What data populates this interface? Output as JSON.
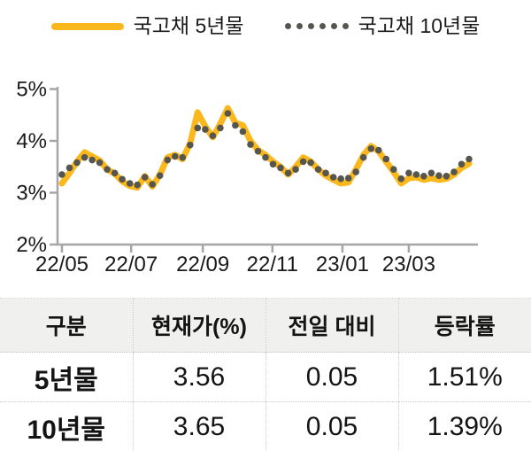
{
  "colors": {
    "line_5y": "#FBB81D",
    "dots_10y": "#57564E",
    "axis": "#a6a6a6",
    "tick_text": "#1a1a1a",
    "table_header_bg": "#f0f0ee"
  },
  "legend": {
    "items": [
      {
        "label": "국고채 5년물",
        "marker": "solid-yellow-line"
      },
      {
        "label": "국고채 10년물",
        "marker": "gray-dots"
      }
    ]
  },
  "chart_data": {
    "type": "line",
    "title": "",
    "xlabel": "",
    "ylabel": "",
    "ylim": [
      2,
      5
    ],
    "grid": false,
    "legend_position": "top",
    "y_ticks": [
      {
        "label": "5%",
        "value": 5
      },
      {
        "label": "4%",
        "value": 4
      },
      {
        "label": "3%",
        "value": 3
      },
      {
        "label": "2%",
        "value": 2
      }
    ],
    "x_ticks": [
      {
        "label": "22/05",
        "pos": 0.0
      },
      {
        "label": "22/07",
        "pos": 0.17
      },
      {
        "label": "22/09",
        "pos": 0.346
      },
      {
        "label": "22/11",
        "pos": 0.517
      },
      {
        "label": "23/01",
        "pos": 0.689
      },
      {
        "label": "23/03",
        "pos": 0.852
      }
    ],
    "series": [
      {
        "name": "국고채 5년물",
        "style": "solid",
        "color": "#FBB81D",
        "values": [
          3.18,
          3.38,
          3.6,
          3.78,
          3.7,
          3.62,
          3.45,
          3.37,
          3.22,
          3.13,
          3.1,
          3.32,
          3.12,
          3.35,
          3.68,
          3.73,
          3.65,
          3.95,
          4.55,
          4.28,
          4.07,
          4.33,
          4.63,
          4.35,
          4.3,
          4.0,
          3.82,
          3.73,
          3.6,
          3.5,
          3.35,
          3.5,
          3.68,
          3.6,
          3.45,
          3.33,
          3.25,
          3.18,
          3.2,
          3.45,
          3.73,
          3.9,
          3.8,
          3.6,
          3.4,
          3.18,
          3.28,
          3.3,
          3.25,
          3.28,
          3.25,
          3.27,
          3.35,
          3.48,
          3.56
        ]
      },
      {
        "name": "국고채 10년물",
        "style": "dotted",
        "color": "#57564E",
        "values": [
          3.35,
          3.48,
          3.58,
          3.68,
          3.63,
          3.58,
          3.45,
          3.38,
          3.26,
          3.18,
          3.15,
          3.3,
          3.16,
          3.33,
          3.63,
          3.7,
          3.68,
          3.92,
          4.25,
          4.22,
          4.1,
          4.25,
          4.53,
          4.3,
          4.18,
          3.93,
          3.8,
          3.68,
          3.55,
          3.48,
          3.38,
          3.45,
          3.6,
          3.58,
          3.45,
          3.38,
          3.3,
          3.27,
          3.28,
          3.4,
          3.68,
          3.85,
          3.82,
          3.65,
          3.45,
          3.27,
          3.38,
          3.35,
          3.32,
          3.38,
          3.33,
          3.32,
          3.4,
          3.55,
          3.65
        ]
      }
    ]
  },
  "table": {
    "headers": [
      "구분",
      "현재가(%)",
      "전일 대비",
      "등락률"
    ],
    "rows": [
      {
        "label": "5년물",
        "current": "3.56",
        "change": "0.05",
        "rate": "1.51%"
      },
      {
        "label": "10년물",
        "current": "3.65",
        "change": "0.05",
        "rate": "1.39%"
      }
    ]
  }
}
